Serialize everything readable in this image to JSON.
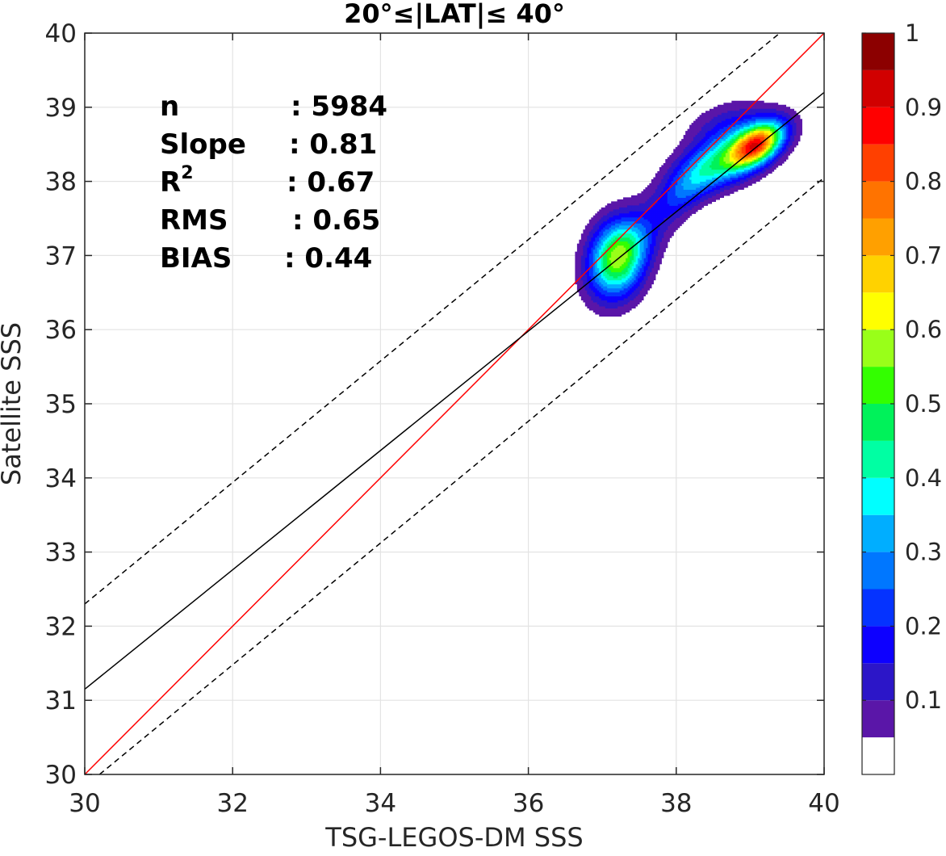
{
  "chart_data": {
    "type": "contour",
    "title": "20°≤|LAT|≤ 40°",
    "xlabel": "TSG-LEGOS-DM SSS",
    "ylabel": "Satellite SSS",
    "xlim": [
      30,
      40
    ],
    "ylim": [
      30,
      40
    ],
    "xticks": [
      "30",
      "32",
      "34",
      "36",
      "38",
      "40"
    ],
    "yticks": [
      "30",
      "31",
      "32",
      "33",
      "34",
      "35",
      "36",
      "37",
      "38",
      "39",
      "40"
    ],
    "grid": true,
    "stats": [
      {
        "label": "n",
        "value": ": 5984"
      },
      {
        "label": "Slope",
        "value": ": 0.81"
      },
      {
        "label": "R",
        "sup": "2",
        "value": ": 0.67"
      },
      {
        "label": "RMS",
        "value": ": 0.65"
      },
      {
        "label": "BIAS",
        "value": ": 0.44"
      }
    ],
    "lines": [
      {
        "role": "one-to-one",
        "color": "#ff0000",
        "points": [
          [
            30,
            30
          ],
          [
            40,
            40
          ]
        ]
      },
      {
        "role": "regression-fit",
        "color": "#000000",
        "points": [
          [
            30,
            31.15
          ],
          [
            40,
            39.2
          ]
        ]
      },
      {
        "role": "upper-envelope",
        "color": "#000000",
        "dashed": true,
        "points": [
          [
            30,
            32.3
          ],
          [
            39.4,
            40
          ]
        ]
      },
      {
        "role": "lower-envelope",
        "color": "#000000",
        "dashed": true,
        "points": [
          [
            30.2,
            30
          ],
          [
            40,
            38.05
          ]
        ]
      }
    ],
    "density_peaks": [
      {
        "x": 37.2,
        "y": 36.95,
        "peak": 0.55
      },
      {
        "x": 39.1,
        "y": 38.5,
        "peak": 0.9
      }
    ],
    "colorbar": {
      "range": [
        0,
        1
      ],
      "ticks": [
        "0.1",
        "0.2",
        "0.3",
        "0.4",
        "0.5",
        "0.6",
        "0.7",
        "0.8",
        "0.9",
        "1"
      ],
      "levels": [
        {
          "from": 0.0,
          "to": 0.05,
          "color": "#ffffff"
        },
        {
          "from": 0.05,
          "to": 0.1,
          "color": "#5a16a8"
        },
        {
          "from": 0.1,
          "to": 0.15,
          "color": "#2c16c8"
        },
        {
          "from": 0.15,
          "to": 0.2,
          "color": "#0d00ff"
        },
        {
          "from": 0.2,
          "to": 0.25,
          "color": "#0533ff"
        },
        {
          "from": 0.25,
          "to": 0.3,
          "color": "#0077ff"
        },
        {
          "from": 0.3,
          "to": 0.35,
          "color": "#00aeff"
        },
        {
          "from": 0.35,
          "to": 0.4,
          "color": "#00ffff"
        },
        {
          "from": 0.4,
          "to": 0.45,
          "color": "#00ffa3"
        },
        {
          "from": 0.45,
          "to": 0.5,
          "color": "#00f25a"
        },
        {
          "from": 0.5,
          "to": 0.55,
          "color": "#33ff00"
        },
        {
          "from": 0.55,
          "to": 0.6,
          "color": "#99ff19"
        },
        {
          "from": 0.6,
          "to": 0.65,
          "color": "#ffff00"
        },
        {
          "from": 0.65,
          "to": 0.7,
          "color": "#ffd200"
        },
        {
          "from": 0.7,
          "to": 0.75,
          "color": "#ffa000"
        },
        {
          "from": 0.75,
          "to": 0.8,
          "color": "#ff7300"
        },
        {
          "from": 0.8,
          "to": 0.85,
          "color": "#ff4000"
        },
        {
          "from": 0.85,
          "to": 0.9,
          "color": "#ff0000"
        },
        {
          "from": 0.9,
          "to": 0.95,
          "color": "#d10000"
        },
        {
          "from": 0.95,
          "to": 1.0,
          "color": "#8c0000"
        }
      ]
    }
  }
}
